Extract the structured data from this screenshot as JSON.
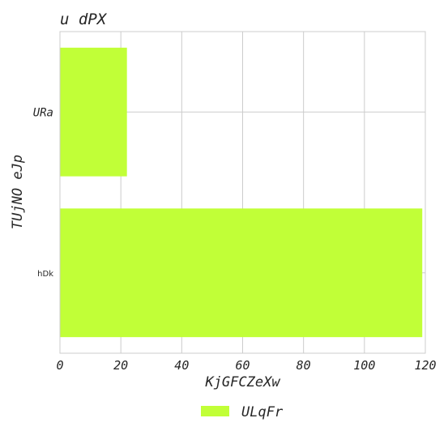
{
  "chart_data": {
    "type": "bar",
    "orientation": "horizontal",
    "title": "u dPX",
    "xlabel": "KjGFCZeXw",
    "ylabel": "TUjNO eJp",
    "categories": [
      "URa",
      "hDk"
    ],
    "series": [
      {
        "name": "ULqFr",
        "values": [
          22,
          119
        ],
        "color": "#c1ff37"
      }
    ],
    "xlim": [
      0,
      120
    ],
    "xticks": [
      0,
      20,
      40,
      60,
      80,
      100,
      120
    ],
    "grid": true,
    "legend": "bottom-center"
  },
  "colors": {
    "grid": "#cccccc",
    "axis_text": "#262626",
    "bar": "#c1ff37"
  }
}
